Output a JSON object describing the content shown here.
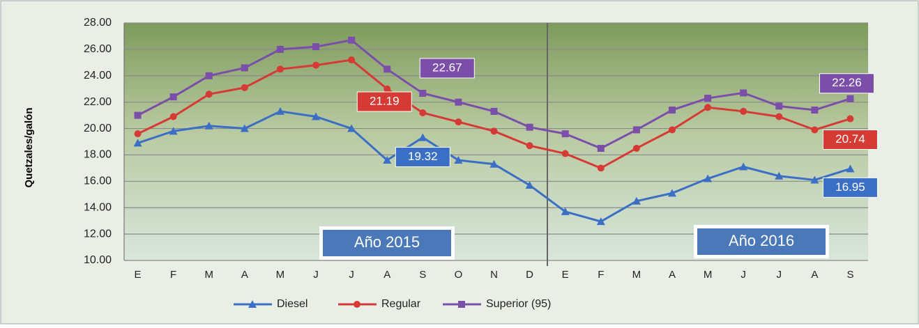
{
  "chart_data": {
    "type": "line",
    "y_label": "Quetzales/galón",
    "categories": [
      "E",
      "F",
      "M",
      "A",
      "M",
      "J",
      "J",
      "A",
      "S",
      "O",
      "N",
      "D",
      "E",
      "F",
      "M",
      "A",
      "M",
      "J",
      "J",
      "A",
      "S"
    ],
    "annotations": [
      "Año 2015",
      "Año 2016"
    ],
    "ylim": [
      10,
      28
    ],
    "yticks": [
      {
        "value": 10,
        "label": "10.00"
      },
      {
        "value": 12,
        "label": "12.00"
      },
      {
        "value": 14,
        "label": "14.00"
      },
      {
        "value": 16,
        "label": "16.00"
      },
      {
        "value": 18,
        "label": "18.00"
      },
      {
        "value": 20,
        "label": "20.00"
      },
      {
        "value": 22,
        "label": "22.00"
      },
      {
        "value": 24,
        "label": "24.00"
      },
      {
        "value": 26,
        "label": "26.00"
      },
      {
        "value": 28,
        "label": "28.00"
      }
    ],
    "grid": true,
    "legend": "bottom",
    "series": [
      {
        "name": "Diesel",
        "color": "#3b6fc6",
        "marker": "triangle",
        "values": [
          18.9,
          19.8,
          20.2,
          20.0,
          21.3,
          20.9,
          20.0,
          17.6,
          19.32,
          17.6,
          17.3,
          15.7,
          13.7,
          12.95,
          14.5,
          15.1,
          16.2,
          17.1,
          16.4,
          16.1,
          16.95
        ],
        "value_labels": [
          null,
          null,
          null,
          null,
          null,
          null,
          null,
          null,
          "19.32",
          null,
          null,
          null,
          null,
          null,
          null,
          null,
          null,
          null,
          null,
          null,
          "16.95"
        ]
      },
      {
        "name": "Regular",
        "color": "#d63a35",
        "marker": "circle",
        "values": [
          19.6,
          20.9,
          22.6,
          23.1,
          24.5,
          24.8,
          25.2,
          23.0,
          21.19,
          20.5,
          19.8,
          18.7,
          18.1,
          17.0,
          18.5,
          19.9,
          21.6,
          21.3,
          20.9,
          19.9,
          20.74
        ],
        "value_labels": [
          null,
          null,
          null,
          null,
          null,
          null,
          null,
          null,
          "21.19",
          null,
          null,
          null,
          null,
          null,
          null,
          null,
          null,
          null,
          null,
          null,
          "20.74"
        ]
      },
      {
        "name": "Superior (95)",
        "color": "#7b4fa9",
        "marker": "square",
        "values": [
          21.0,
          22.4,
          24.0,
          24.6,
          26.0,
          26.2,
          26.7,
          24.5,
          22.67,
          22.0,
          21.3,
          20.1,
          19.6,
          18.5,
          19.9,
          21.4,
          22.3,
          22.7,
          21.7,
          21.4,
          22.26
        ],
        "value_labels": [
          null,
          null,
          null,
          null,
          null,
          null,
          null,
          null,
          "22.67",
          null,
          null,
          null,
          null,
          null,
          null,
          null,
          null,
          null,
          null,
          null,
          "22.26"
        ]
      }
    ]
  }
}
